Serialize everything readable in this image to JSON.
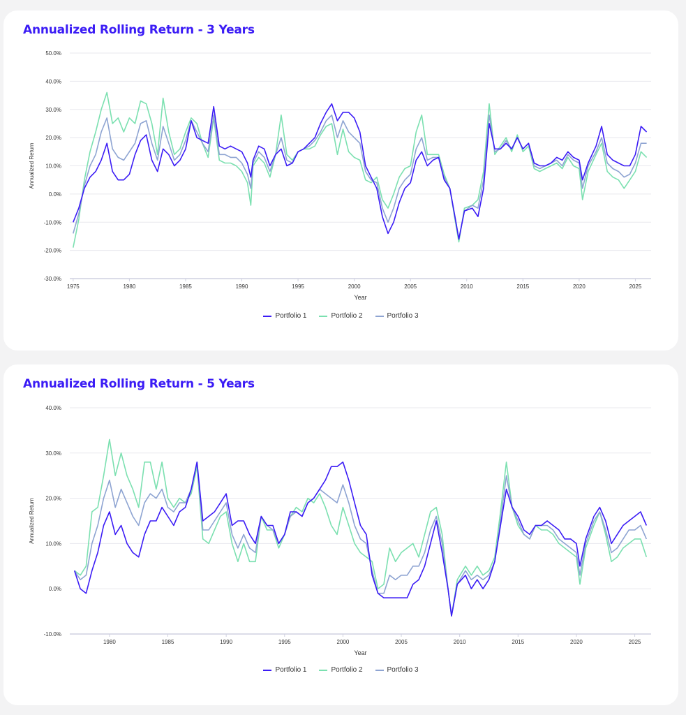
{
  "chart_data": [
    {
      "type": "line",
      "title": "Annualized Rolling Return - 3 Years",
      "xlabel": "Year",
      "ylabel": "Annualized Return",
      "ylim": [
        -30,
        50
      ],
      "yticks": [
        -30,
        -20,
        -10,
        0,
        10,
        20,
        30,
        40,
        50
      ],
      "xlim": [
        1974.7,
        2026.4
      ],
      "xticks": [
        1975,
        1980,
        1985,
        1990,
        1995,
        2000,
        2005,
        2010,
        2015,
        2020,
        2025
      ],
      "grid": true,
      "legend": "bottom",
      "x": [
        1975,
        1975.5,
        1976,
        1976.5,
        1977,
        1977.5,
        1978,
        1978.5,
        1979,
        1979.5,
        1980,
        1980.5,
        1981,
        1981.5,
        1982,
        1982.5,
        1983,
        1983.5,
        1984,
        1984.5,
        1985,
        1985.5,
        1986,
        1986.5,
        1987,
        1987.5,
        1988,
        1988.5,
        1989,
        1989.5,
        1990,
        1990.5,
        1990.8,
        1991,
        1991.5,
        1992,
        1992.5,
        1993,
        1993.5,
        1994,
        1994.5,
        1995,
        1995.5,
        1996,
        1996.5,
        1997,
        1997.5,
        1998,
        1998.5,
        1999,
        1999.5,
        2000,
        2000.5,
        2001,
        2001.5,
        2002,
        2002.5,
        2003,
        2003.5,
        2004,
        2004.5,
        2005,
        2005.5,
        2006,
        2006.5,
        2007,
        2007.5,
        2008,
        2008.5,
        2009,
        2009.3,
        2009.8,
        2010.5,
        2011,
        2011.5,
        2012,
        2012.5,
        2013,
        2013.5,
        2014,
        2014.5,
        2015,
        2015.5,
        2016,
        2016.5,
        2017,
        2017.5,
        2018,
        2018.5,
        2019,
        2019.5,
        2020,
        2020.3,
        2020.8,
        2021.5,
        2022,
        2022.5,
        2023,
        2023.5,
        2024,
        2024.5,
        2025,
        2025.5,
        2026
      ],
      "series": [
        {
          "name": "Portfolio 1",
          "color": "#3b1cf5",
          "values": [
            -10,
            -5,
            2,
            6,
            8,
            12,
            18,
            8,
            5,
            5,
            7,
            14,
            19,
            21,
            12,
            8,
            16,
            14,
            10,
            12,
            16,
            26,
            20,
            19,
            18,
            31,
            17,
            16,
            17,
            16,
            15,
            11,
            6,
            12,
            17,
            16,
            10,
            14,
            16,
            10,
            11,
            15,
            16,
            18,
            20,
            25,
            29,
            32,
            26,
            29,
            29,
            27,
            22,
            10,
            6,
            2,
            -8,
            -14,
            -10,
            -3,
            2,
            4,
            12,
            15,
            10,
            12,
            13,
            5,
            2,
            -9,
            -16,
            -6,
            -5,
            -8,
            2,
            25,
            16,
            16,
            18,
            16,
            20,
            16,
            18,
            11,
            10,
            10,
            11,
            13,
            12,
            15,
            13,
            12,
            5,
            11,
            17,
            24,
            14,
            12,
            11,
            10,
            10,
            14,
            24,
            22
          ]
        },
        {
          "name": "Portfolio 2",
          "color": "#7be0b0",
          "values": [
            -19,
            -9,
            5,
            15,
            22,
            30,
            36,
            25,
            27,
            22,
            27,
            25,
            33,
            32,
            25,
            14,
            34,
            22,
            14,
            16,
            22,
            27,
            25,
            18,
            13,
            27,
            12,
            11,
            11,
            10,
            8,
            4,
            -4,
            10,
            13,
            11,
            6,
            14,
            28,
            14,
            12,
            15,
            16,
            16,
            17,
            21,
            24,
            25,
            14,
            23,
            15,
            13,
            12,
            5,
            4,
            6,
            -2,
            -5,
            0,
            6,
            9,
            10,
            22,
            28,
            14,
            14,
            14,
            7,
            2,
            -10,
            -17,
            -5,
            -4,
            -2,
            8,
            32,
            14,
            17,
            20,
            15,
            21,
            15,
            17,
            9,
            8,
            9,
            10,
            11,
            9,
            13,
            10,
            9,
            -2,
            8,
            14,
            18,
            8,
            6,
            5,
            2,
            5,
            8,
            15,
            13
          ]
        },
        {
          "name": "Portfolio 3",
          "color": "#8ea4d2",
          "values": [
            -14,
            -7,
            3,
            10,
            14,
            22,
            27,
            16,
            13,
            12,
            15,
            18,
            25,
            26,
            18,
            12,
            24,
            18,
            12,
            14,
            19,
            26,
            22,
            18,
            15,
            28,
            14,
            14,
            13,
            13,
            11,
            7,
            2,
            11,
            15,
            13,
            8,
            14,
            20,
            12,
            11,
            15,
            16,
            17,
            19,
            22,
            26,
            28,
            20,
            26,
            22,
            20,
            18,
            8,
            5,
            4,
            -5,
            -10,
            -5,
            2,
            5,
            7,
            16,
            20,
            12,
            13,
            13,
            6,
            2,
            -9,
            -16,
            -6,
            -4,
            -5,
            5,
            28,
            15,
            16,
            19,
            16,
            20,
            16,
            18,
            10,
            9,
            10,
            11,
            12,
            10,
            14,
            12,
            11,
            2,
            10,
            15,
            20,
            11,
            9,
            8,
            6,
            7,
            11,
            18,
            18
          ]
        }
      ]
    },
    {
      "type": "line",
      "title": "Annualized Rolling Return - 5 Years",
      "xlabel": "Year",
      "ylabel": "Annualized Return",
      "ylim": [
        -10,
        40
      ],
      "yticks": [
        -10,
        0,
        10,
        20,
        30,
        40
      ],
      "xlim": [
        1976.6,
        2026.4
      ],
      "xticks": [
        1980,
        1985,
        1990,
        1995,
        2000,
        2005,
        2010,
        2015,
        2020,
        2025
      ],
      "grid": true,
      "legend": "bottom",
      "x": [
        1977,
        1977.5,
        1978,
        1978.5,
        1979,
        1979.5,
        1980,
        1980.5,
        1981,
        1981.5,
        1982,
        1982.5,
        1983,
        1983.5,
        1984,
        1984.5,
        1985,
        1985.5,
        1986,
        1986.5,
        1987,
        1987.5,
        1988,
        1988.5,
        1989,
        1989.5,
        1990,
        1990.5,
        1991,
        1991.5,
        1992,
        1992.5,
        1993,
        1993.5,
        1994,
        1994.5,
        1995,
        1995.5,
        1996,
        1996.5,
        1997,
        1997.5,
        1998,
        1998.5,
        1999,
        1999.5,
        2000,
        2000.5,
        2001,
        2001.5,
        2002,
        2002.5,
        2003,
        2003.5,
        2004,
        2004.5,
        2005,
        2005.5,
        2006,
        2006.5,
        2007,
        2007.5,
        2008,
        2008.5,
        2009,
        2009.3,
        2009.8,
        2010.5,
        2011,
        2011.5,
        2012,
        2012.5,
        2013,
        2013.5,
        2014,
        2014.5,
        2015,
        2015.5,
        2016,
        2016.5,
        2017,
        2017.5,
        2018,
        2018.5,
        2019,
        2019.5,
        2020,
        2020.3,
        2020.8,
        2021.5,
        2022,
        2022.5,
        2023,
        2023.5,
        2024,
        2024.5,
        2025,
        2025.5,
        2026
      ],
      "series": [
        {
          "name": "Portfolio 1",
          "color": "#3b1cf5",
          "values": [
            4,
            0,
            -1,
            4,
            8,
            14,
            17,
            12,
            14,
            10,
            8,
            7,
            12,
            15,
            15,
            18,
            16,
            14,
            17,
            18,
            22,
            28,
            15,
            16,
            17,
            19,
            21,
            14,
            15,
            15,
            12,
            10,
            16,
            14,
            14,
            10,
            12,
            17,
            17,
            16,
            19,
            20,
            22,
            24,
            27,
            27,
            28,
            24,
            19,
            14,
            12,
            3,
            -1,
            -2,
            -2,
            -2,
            -2,
            -2,
            1,
            2,
            5,
            10,
            15,
            8,
            0,
            -6,
            1,
            3,
            0,
            2,
            0,
            2,
            6,
            14,
            22,
            18,
            16,
            13,
            12,
            14,
            14,
            15,
            14,
            13,
            11,
            11,
            10,
            5,
            11,
            16,
            18,
            15,
            10,
            12,
            14,
            15,
            16,
            17,
            14
          ]
        },
        {
          "name": "Portfolio 2",
          "color": "#7be0b0",
          "values": [
            4,
            3,
            5,
            17,
            18,
            25,
            33,
            25,
            30,
            25,
            22,
            18,
            28,
            28,
            22,
            28,
            20,
            18,
            20,
            19,
            21,
            27,
            11,
            10,
            13,
            16,
            17,
            10,
            6,
            10,
            6,
            6,
            16,
            13,
            13,
            9,
            12,
            16,
            18,
            17,
            20,
            19,
            21,
            18,
            14,
            12,
            18,
            14,
            10,
            8,
            7,
            6,
            0,
            1,
            9,
            6,
            8,
            9,
            10,
            7,
            12,
            17,
            18,
            12,
            0,
            -6,
            2,
            5,
            3,
            5,
            3,
            4,
            7,
            17,
            28,
            18,
            14,
            12,
            11,
            14,
            13,
            13,
            12,
            10,
            9,
            8,
            7,
            1,
            9,
            14,
            17,
            12,
            6,
            7,
            9,
            10,
            11,
            11,
            7
          ]
        },
        {
          "name": "Portfolio 3",
          "color": "#8ea4d2",
          "values": [
            4,
            2,
            3,
            10,
            14,
            20,
            24,
            18,
            22,
            19,
            16,
            14,
            19,
            21,
            20,
            22,
            18,
            17,
            19,
            19,
            22,
            28,
            13,
            13,
            15,
            17,
            19,
            12,
            9,
            12,
            9,
            8,
            16,
            14,
            13,
            10,
            12,
            16,
            17,
            16,
            19,
            20,
            22,
            21,
            20,
            19,
            23,
            19,
            14,
            11,
            10,
            4,
            -1,
            -1,
            3,
            2,
            3,
            3,
            5,
            5,
            8,
            13,
            16,
            10,
            0,
            -6,
            1,
            4,
            2,
            3,
            2,
            3,
            6,
            15,
            25,
            18,
            15,
            12,
            11,
            14,
            14,
            14,
            13,
            11,
            10,
            9,
            8,
            3,
            10,
            15,
            17,
            13,
            8,
            9,
            11,
            13,
            13,
            14,
            11
          ]
        }
      ]
    }
  ]
}
